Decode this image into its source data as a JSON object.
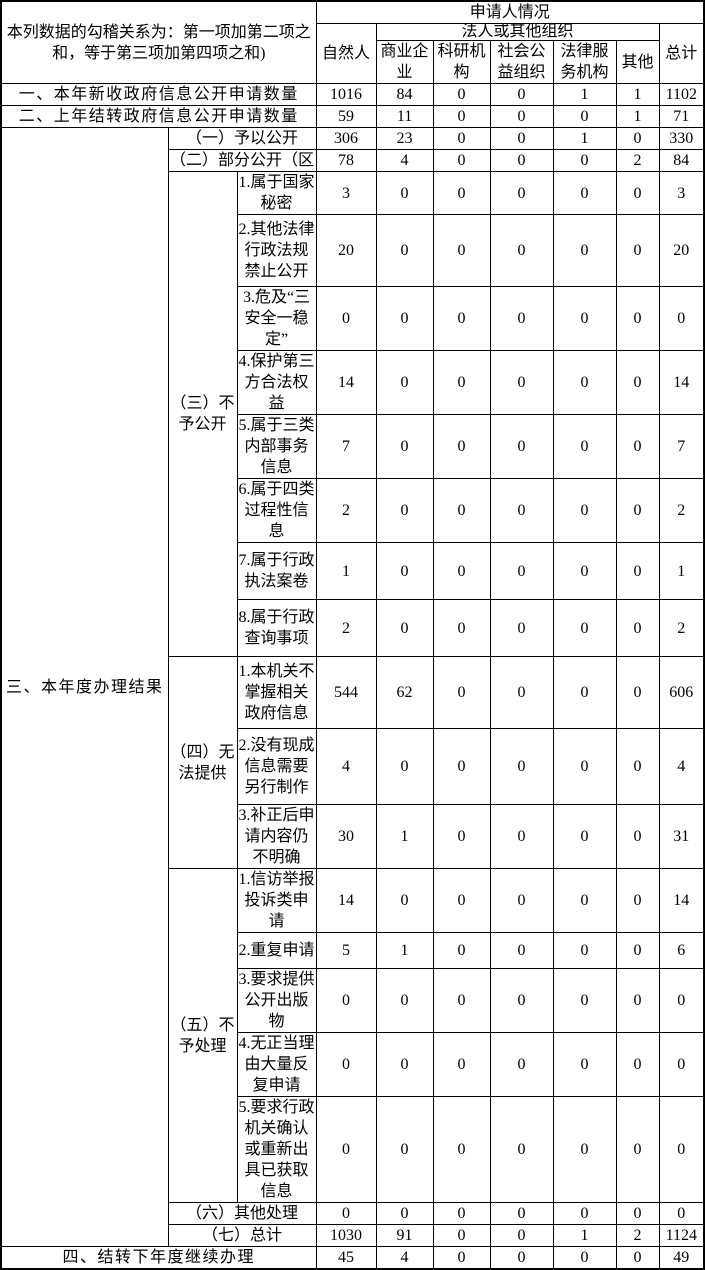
{
  "colors": {
    "background": "#ffffff",
    "border": "#000000",
    "text": "#000000"
  },
  "table": {
    "corner_note": "本列数据的勾稽关系为：第一项加第二项之和，等于第三项加第四项之和)",
    "header": {
      "applicant_situation": "申请人情况",
      "natural_person": "自然人",
      "legal_or_other_org": "法人或其他组织",
      "org_columns": [
        "商业企业",
        "科研机构",
        "社会公益组织",
        "法律服务机构",
        "其他"
      ],
      "total": "总计"
    },
    "rows": [
      {
        "cells": [
          {
            "text": "本列数据的勾稽关系为：第一项加第二项之和，等于第三项加第四项之和)",
            "cs": 3,
            "rs": 3,
            "cls": "note",
            "name": "corner-note"
          },
          {
            "text": "申请人情况",
            "cs": 7,
            "cls": "hd",
            "name": "header-applicant-situation"
          }
        ]
      },
      {
        "cells": [
          {
            "text": "自然人",
            "rs": 2,
            "cls": "hd",
            "name": "header-natural-person"
          },
          {
            "text": "法人或其他组织",
            "cs": 5,
            "cls": "hd",
            "name": "header-legal-or-other-org"
          },
          {
            "text": "总计",
            "rs": 2,
            "cls": "hd",
            "name": "header-total"
          }
        ]
      },
      {
        "cells": [
          {
            "text": "商业企业",
            "cls": "hd",
            "name": "header-commercial-enterprise"
          },
          {
            "text": "科研机构",
            "cls": "hd",
            "name": "header-research-institution"
          },
          {
            "text": "社会公益组织",
            "cls": "hd",
            "name": "header-public-welfare-org"
          },
          {
            "text": "法律服务机构",
            "cls": "hd",
            "name": "header-legal-service-org"
          },
          {
            "text": "其他",
            "cls": "hd",
            "name": "header-other"
          }
        ]
      },
      {
        "cells": [
          {
            "text": "一、本年新收政府信息公开申请数量",
            "cs": 3,
            "cls": "lab",
            "name": "row-label-new-requests-this-year"
          },
          "1016",
          "84",
          "0",
          "0",
          "1",
          "1",
          "1102"
        ]
      },
      {
        "cells": [
          {
            "text": "二、上年结转政府信息公开申请数量",
            "cs": 3,
            "cls": "lab",
            "name": "row-label-carried-over-from-last-year"
          },
          "59",
          "11",
          "0",
          "0",
          "0",
          "1",
          "71"
        ]
      },
      {
        "cells": [
          {
            "text": "三、本年度办理结果",
            "rs": 20,
            "cls": "lab",
            "name": "section-label-results-this-year"
          },
          {
            "text": "（一）予以公开",
            "cs": 2,
            "cls": "sub",
            "name": "row-label-granted-disclosure"
          },
          "306",
          "23",
          "0",
          "0",
          "1",
          "0",
          "330"
        ]
      },
      {
        "cells": [
          {
            "text": "（二）部分公开（区",
            "cs": 2,
            "cls": "sub",
            "name": "row-label-partial-disclosure"
          },
          "78",
          "4",
          "0",
          "0",
          "0",
          "2",
          "84"
        ]
      },
      {
        "cells": [
          {
            "text": "（三）不予公开",
            "rs": 8,
            "cls": "grp",
            "name": "group-label-refused-disclosure"
          },
          {
            "text": "1.属于国家秘密",
            "cls": "item",
            "name": "item-label-state-secret"
          },
          "3",
          "0",
          "0",
          "0",
          "0",
          "0",
          "3"
        ]
      },
      {
        "cells": [
          {
            "text": "2.其他法律行政法规禁止公开",
            "cls": "item",
            "name": "item-label-prohibited-by-law"
          },
          "20",
          "0",
          "0",
          "0",
          "0",
          "0",
          "20"
        ]
      },
      {
        "cells": [
          {
            "text": "3.危及“三安全一稳定”",
            "cls": "item",
            "name": "item-label-endanger-security-stability"
          },
          "0",
          "0",
          "0",
          "0",
          "0",
          "0",
          "0"
        ]
      },
      {
        "cells": [
          {
            "text": "4.保护第三方合法权益",
            "cls": "item",
            "name": "item-label-third-party-rights"
          },
          "14",
          "0",
          "0",
          "0",
          "0",
          "0",
          "14"
        ]
      },
      {
        "cells": [
          {
            "text": "5.属于三类内部事务信息",
            "cls": "item",
            "name": "item-label-internal-affairs-info"
          },
          "7",
          "0",
          "0",
          "0",
          "0",
          "0",
          "7"
        ]
      },
      {
        "cells": [
          {
            "text": "6.属于四类过程性信息",
            "cls": "item",
            "name": "item-label-process-info"
          },
          "2",
          "0",
          "0",
          "0",
          "0",
          "0",
          "2"
        ]
      },
      {
        "cells": [
          {
            "text": "7.属于行政执法案卷",
            "cls": "item",
            "name": "item-label-enforcement-files"
          },
          "1",
          "0",
          "0",
          "0",
          "0",
          "0",
          "1"
        ]
      },
      {
        "cells": [
          {
            "text": "8.属于行政查询事项",
            "cls": "item",
            "name": "item-label-administrative-inquiry"
          },
          "2",
          "0",
          "0",
          "0",
          "0",
          "0",
          "2"
        ]
      },
      {
        "cells": [
          {
            "text": "（四）无法提供",
            "rs": 3,
            "cls": "grp",
            "name": "group-label-unable-to-provide"
          },
          {
            "text": "1.本机关不掌握相关政府信息",
            "cls": "item",
            "name": "item-label-info-not-held"
          },
          "544",
          "62",
          "0",
          "0",
          "0",
          "0",
          "606"
        ]
      },
      {
        "cells": [
          {
            "text": "2.没有现成信息需要另行制作",
            "cls": "item",
            "name": "item-label-needs-separate-creation"
          },
          "4",
          "0",
          "0",
          "0",
          "0",
          "0",
          "4"
        ]
      },
      {
        "cells": [
          {
            "text": "3.补正后申请内容仍不明确",
            "cls": "item",
            "name": "item-label-still-unclear-after-correction"
          },
          "30",
          "1",
          "0",
          "0",
          "0",
          "0",
          "31"
        ]
      },
      {
        "cells": [
          {
            "text": "（五）不予处理",
            "rs": 5,
            "cls": "grp",
            "name": "group-label-not-processed"
          },
          {
            "text": "1.信访举报投诉类申请",
            "cls": "item",
            "name": "item-label-petition-complaint-requests"
          },
          "14",
          "0",
          "0",
          "0",
          "0",
          "0",
          "14"
        ]
      },
      {
        "cells": [
          {
            "text": "2.重复申请",
            "cls": "item",
            "name": "item-label-repeated-request"
          },
          "5",
          "1",
          "0",
          "0",
          "0",
          "0",
          "6"
        ]
      },
      {
        "cells": [
          {
            "text": "3.要求提供公开出版物",
            "cls": "item",
            "name": "item-label-request-publications"
          },
          "0",
          "0",
          "0",
          "0",
          "0",
          "0",
          "0"
        ]
      },
      {
        "cells": [
          {
            "text": "4.无正当理由大量反复申请",
            "cls": "item",
            "name": "item-label-massive-repeated-requests"
          },
          "0",
          "0",
          "0",
          "0",
          "0",
          "0",
          "0"
        ]
      },
      {
        "cells": [
          {
            "text": "5.要求行政机关确认或重新出具已获取信息",
            "cls": "item",
            "name": "item-label-confirm-or-reissue-info"
          },
          "0",
          "0",
          "0",
          "0",
          "0",
          "0",
          "0"
        ]
      },
      {
        "cells": [
          {
            "text": "（六）其他处理",
            "cs": 2,
            "cls": "sub",
            "name": "row-label-other-processing"
          },
          "0",
          "0",
          "0",
          "0",
          "0",
          "0",
          "0"
        ]
      },
      {
        "cells": [
          {
            "text": "（七）总计",
            "cs": 2,
            "cls": "sub",
            "name": "row-label-subtotal"
          },
          "1030",
          "91",
          "0",
          "0",
          "1",
          "2",
          "1124"
        ]
      },
      {
        "cells": [
          {
            "text": "四、结转下年度继续办理",
            "cs": 3,
            "cls": "lab",
            "name": "row-label-carried-to-next-year"
          },
          "45",
          "4",
          "0",
          "0",
          "0",
          "0",
          "49"
        ]
      }
    ]
  }
}
